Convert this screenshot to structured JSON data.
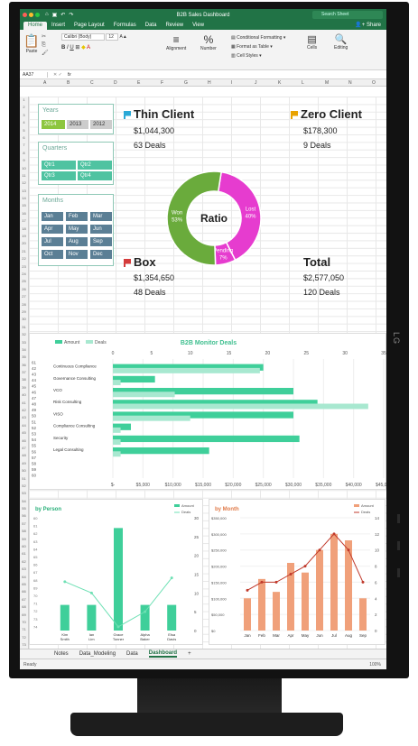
{
  "window": {
    "title": "B2B Sales Dashboard",
    "search_placeholder": "Search Sheet"
  },
  "ribbon": {
    "tabs": [
      "Home",
      "Insert",
      "Page Layout",
      "Formulas",
      "Data",
      "Review",
      "View"
    ],
    "share": "Share",
    "paste": "Paste",
    "font": "Calibri (Body)",
    "font_size": "12",
    "alignment": "Alignment",
    "number": "Number",
    "conditional": "Conditional Formatting",
    "format_table": "Format as Table",
    "cell_styles": "Cell Styles",
    "cells": "Cells",
    "editing": "Editing"
  },
  "formula_bar": {
    "name_box": "AA37",
    "fx": "fx"
  },
  "columns": [
    "A",
    "B",
    "C",
    "D",
    "E",
    "F",
    "G",
    "H",
    "I",
    "J",
    "K",
    "L",
    "M",
    "N",
    "O"
  ],
  "slicers": {
    "years": {
      "title": "Years",
      "items": [
        "2014",
        "2013",
        "2012"
      ]
    },
    "quarters": {
      "title": "Quarters",
      "items": [
        "Qtr1",
        "Qtr2",
        "Qtr3",
        "Qtr4"
      ]
    },
    "months": {
      "title": "Months",
      "items": [
        "Jan",
        "Feb",
        "Mar",
        "Apr",
        "May",
        "Jun",
        "Jul",
        "Aug",
        "Sep",
        "Oct",
        "Nov",
        "Dec"
      ]
    }
  },
  "kpis": {
    "thin": {
      "title": "Thin Client",
      "amount": "$1,044,300",
      "deals": "63 Deals"
    },
    "zero": {
      "title": "Zero Client",
      "amount": "$178,300",
      "deals": "9 Deals"
    },
    "box": {
      "title": "Box",
      "amount": "$1,354,650",
      "deals": "48 Deals"
    },
    "total": {
      "title": "Total",
      "amount": "$2,577,050",
      "deals": "120 Deals"
    }
  },
  "colors": {
    "excel": "#217346",
    "won": "#6aab3c",
    "lost": "#e63ccf",
    "pending": "#e63ccf",
    "teal": "#3fcf9a",
    "orange": "#f0a07a",
    "line": "#c0392b"
  },
  "chart_data": [
    {
      "type": "pie",
      "title": "Ratio",
      "categories": [
        "Won",
        "Lost",
        "Pending"
      ],
      "labels": [
        "Won 53%",
        "Lost 40%",
        "Pending 7%"
      ],
      "values": [
        53,
        40,
        7
      ]
    },
    {
      "type": "bar",
      "title": "B2B Monitor Deals",
      "legend": [
        "Amount",
        "Deals"
      ],
      "categories": [
        "Continuous Compliance",
        "Governance Consulting",
        "VCO",
        "Risk Consulting",
        "VISO",
        "Compliance Consulting",
        "Security",
        "Legal Consulting"
      ],
      "series": [
        {
          "name": "Amount",
          "values": [
            25000,
            7000,
            30000,
            34000,
            30000,
            3000,
            31000,
            16000
          ]
        },
        {
          "name": "Deals",
          "values": [
            19,
            1,
            8,
            33,
            10,
            1,
            1,
            1
          ]
        }
      ],
      "xticks_bottom": [
        "$-",
        "$5,000",
        "$10,000",
        "$15,000",
        "$20,000",
        "$25,000",
        "$30,000",
        "$35,000",
        "$40,000",
        "$45,000"
      ],
      "xticks_top": [
        "0",
        "5",
        "10",
        "15",
        "20",
        "25",
        "30",
        "35"
      ],
      "yticks": [
        "61",
        "42",
        "43",
        "44",
        "45",
        "46",
        "47",
        "48",
        "49",
        "50",
        "51",
        "52",
        "53",
        "54",
        "55",
        "56",
        "57",
        "58",
        "59",
        "60"
      ]
    },
    {
      "type": "bar",
      "title": "by Person",
      "legend": [
        "Amount",
        "Deals"
      ],
      "categories": [
        "Kim",
        "Ian",
        "Grace",
        "Alpha",
        "Elsa"
      ],
      "category_sub": [
        "Smith",
        "Lim",
        "Tonner",
        "Baker",
        "Davis"
      ],
      "series": [
        {
          "name": "Amount",
          "values": [
            5,
            5,
            20,
            5,
            5
          ]
        },
        {
          "name": "Deals",
          "values": [
            13,
            10,
            1,
            5,
            14
          ]
        }
      ],
      "yticks_right": [
        "0",
        "5",
        "10",
        "15",
        "20",
        "25",
        "30"
      ]
    },
    {
      "type": "bar",
      "title": "by Month",
      "legend": [
        "Amount",
        "Deals"
      ],
      "categories": [
        "Jan",
        "Feb",
        "Mar",
        "Apr",
        "May",
        "Jun",
        "Jul",
        "Aug",
        "Sep"
      ],
      "series": [
        {
          "name": "Amount",
          "values": [
            100,
            160,
            120,
            210,
            180,
            250,
            300,
            280,
            100
          ]
        },
        {
          "name": "Deals",
          "values": [
            5,
            6,
            6,
            7,
            8,
            10,
            12,
            10,
            6
          ]
        }
      ],
      "yticks_left": [
        "$0",
        "$50,000",
        "$100,000",
        "$150,000",
        "$200,000",
        "$250,000",
        "$300,000",
        "$350,000"
      ],
      "yticks_right": [
        "0",
        "2",
        "4",
        "6",
        "8",
        "10",
        "12",
        "14"
      ]
    }
  ],
  "sheet_tabs": [
    "Notes",
    "Data_Modeling",
    "Data",
    "Dashboard"
  ],
  "status": {
    "ready": "Ready",
    "zoom": "100%"
  },
  "monitor": {
    "brand": "LG"
  }
}
